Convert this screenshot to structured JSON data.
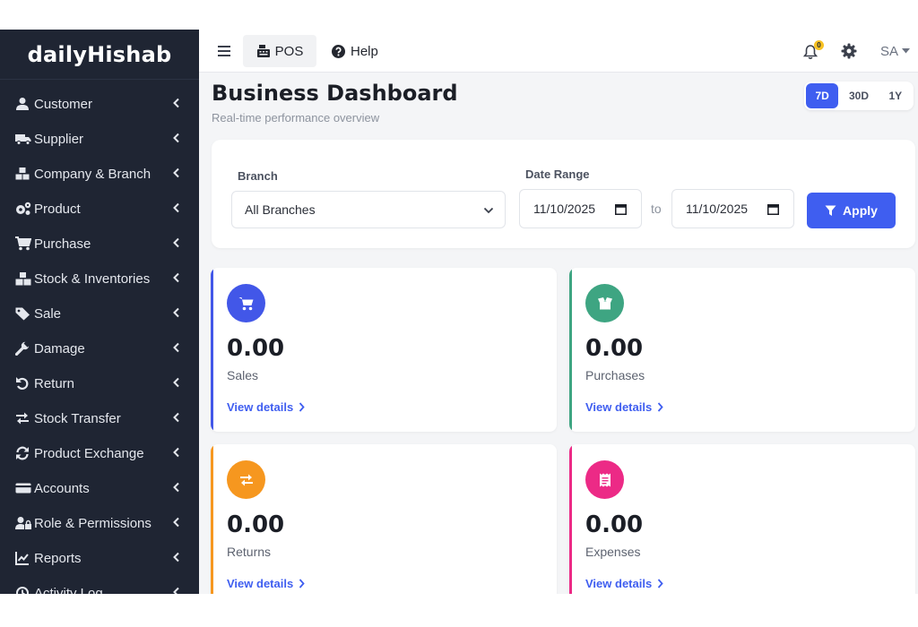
{
  "app": {
    "brand": "dailyHishab"
  },
  "sidebar": {
    "items": [
      {
        "label": "Customer",
        "icon": "user-icon"
      },
      {
        "label": "Supplier",
        "icon": "truck-icon"
      },
      {
        "label": "Company & Branch",
        "icon": "cubes-icon"
      },
      {
        "label": "Product",
        "icon": "cogs-icon"
      },
      {
        "label": "Purchase",
        "icon": "cart-arrow-icon"
      },
      {
        "label": "Stock & Inventories",
        "icon": "boxes-icon"
      },
      {
        "label": "Sale",
        "icon": "tags-icon"
      },
      {
        "label": "Damage",
        "icon": "wrench-icon"
      },
      {
        "label": "Return",
        "icon": "undo-icon"
      },
      {
        "label": "Stock Transfer",
        "icon": "exchange-icon"
      },
      {
        "label": "Product Exchange",
        "icon": "sync-icon"
      },
      {
        "label": "Accounts",
        "icon": "credit-card-icon"
      },
      {
        "label": "Role & Permissions",
        "icon": "user-lock-icon"
      },
      {
        "label": "Reports",
        "icon": "chart-line-icon"
      },
      {
        "label": "Activity Log",
        "icon": "history-icon"
      }
    ]
  },
  "topbar": {
    "pos_label": "POS",
    "help_label": "Help",
    "notification_count": "0",
    "user_initials": "SA"
  },
  "header": {
    "title": "Business Dashboard",
    "subtitle": "Real-time performance overview",
    "ranges": [
      "7D",
      "30D",
      "1Y"
    ],
    "active_range": "7D"
  },
  "filters": {
    "branch_label": "Branch",
    "branch_value": "All Branches",
    "date_range_label": "Date Range",
    "date_from": "11/10/2025",
    "to_label": "to",
    "date_to": "11/10/2025",
    "apply_label": "Apply"
  },
  "stats": [
    {
      "value": "0.00",
      "label": "Sales",
      "link": "View details",
      "color": "#4257e8",
      "icon": "shopping-cart-icon"
    },
    {
      "value": "0.00",
      "label": "Purchases",
      "link": "View details",
      "color": "#3ea582",
      "icon": "box-open-icon"
    },
    {
      "value": "0.00",
      "label": "Returns",
      "link": "View details",
      "color": "#f6971f",
      "icon": "exchange-icon"
    },
    {
      "value": "0.00",
      "label": "Expenses",
      "link": "View details",
      "color": "#ec2a86",
      "icon": "receipt-icon"
    }
  ],
  "colors": {
    "sidebar_bg": "#1f2533",
    "primary": "#3f5ef0",
    "page_bg": "#f4f5f7"
  }
}
